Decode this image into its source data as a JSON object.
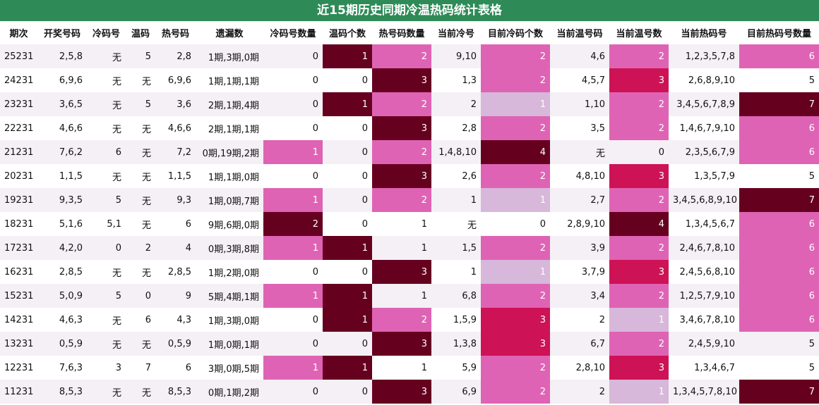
{
  "title": "近15期历史同期冷温热码统计表格",
  "headers": [
    "期次",
    "开奖号码",
    "冷码号",
    "温码",
    "热号码",
    "遗漏数",
    "冷码号数量",
    "温码个数",
    "热号码数量",
    "当前冷号",
    "目前冷码个数",
    "当前温号码",
    "当前温号数",
    "当前热码号",
    "目前热码号数量"
  ],
  "colors": {
    "title_bg": "#2e8b57",
    "row_odd": "#f4f0f5",
    "row_even": "#ffffff",
    "light_lavender": "#d7b7da",
    "pink": "#df63b4",
    "magenta": "#cd1255",
    "maroon": "#65001f"
  },
  "chart_data": {
    "type": "table",
    "title": "近15期历史同期冷温热码统计表格",
    "columns": [
      "期次",
      "开奖号码",
      "冷码号",
      "温码",
      "热号码",
      "遗漏数",
      "冷码号数量",
      "温码个数",
      "热号码数量",
      "当前冷号",
      "目前冷码个数",
      "当前温号码",
      "当前温号数",
      "当前热码号",
      "目前热码号数量"
    ],
    "heat_columns": [
      6,
      7,
      8,
      10,
      12,
      14
    ],
    "rows": [
      [
        "25231",
        "2,5,8",
        "无",
        "5",
        "2,8",
        "1期,3期,0期",
        "0",
        "1",
        "2",
        "9,10",
        "2",
        "4,6",
        "2",
        "1,2,3,5,7,8",
        "6"
      ],
      [
        "24231",
        "6,9,6",
        "无",
        "无",
        "6,9,6",
        "1期,1期,1期",
        "0",
        "0",
        "3",
        "1,3",
        "2",
        "4,5,7",
        "3",
        "2,6,8,9,10",
        "5"
      ],
      [
        "23231",
        "3,6,5",
        "无",
        "5",
        "3,6",
        "2期,1期,4期",
        "0",
        "1",
        "2",
        "2",
        "1",
        "1,10",
        "2",
        "3,4,5,6,7,8,9",
        "7"
      ],
      [
        "22231",
        "4,6,6",
        "无",
        "无",
        "4,6,6",
        "2期,1期,1期",
        "0",
        "0",
        "3",
        "2,8",
        "2",
        "3,5",
        "2",
        "1,4,6,7,9,10",
        "6"
      ],
      [
        "21231",
        "7,6,2",
        "6",
        "无",
        "7,2",
        "0期,19期,2期",
        "1",
        "0",
        "2",
        "1,4,8,10",
        "4",
        "无",
        "0",
        "2,3,5,6,7,9",
        "6"
      ],
      [
        "20231",
        "1,1,5",
        "无",
        "无",
        "1,1,5",
        "1期,1期,0期",
        "0",
        "0",
        "3",
        "2,6",
        "2",
        "4,8,10",
        "3",
        "1,3,5,7,9",
        "5"
      ],
      [
        "19231",
        "9,3,5",
        "5",
        "无",
        "9,3",
        "1期,0期,7期",
        "1",
        "0",
        "2",
        "1",
        "1",
        "2,7",
        "2",
        "3,4,5,6,8,9,10",
        "7"
      ],
      [
        "18231",
        "5,1,6",
        "5,1",
        "无",
        "6",
        "9期,6期,0期",
        "2",
        "0",
        "1",
        "无",
        "0",
        "2,8,9,10",
        "4",
        "1,3,4,5,6,7",
        "6"
      ],
      [
        "17231",
        "4,2,0",
        "0",
        "2",
        "4",
        "0期,3期,8期",
        "1",
        "1",
        "1",
        "1,5",
        "2",
        "3,9",
        "2",
        "2,4,6,7,8,10",
        "6"
      ],
      [
        "16231",
        "2,8,5",
        "无",
        "无",
        "2,8,5",
        "1期,2期,0期",
        "0",
        "0",
        "3",
        "1",
        "1",
        "3,7,9",
        "3",
        "2,4,5,6,8,10",
        "6"
      ],
      [
        "15231",
        "5,0,9",
        "5",
        "0",
        "9",
        "5期,4期,1期",
        "1",
        "1",
        "1",
        "6,8",
        "2",
        "3,4",
        "2",
        "1,2,5,7,9,10",
        "6"
      ],
      [
        "14231",
        "4,6,3",
        "无",
        "6",
        "4,3",
        "1期,3期,0期",
        "0",
        "1",
        "2",
        "1,5,9",
        "3",
        "2",
        "1",
        "3,4,6,7,8,10",
        "6"
      ],
      [
        "13231",
        "0,5,9",
        "无",
        "无",
        "0,5,9",
        "1期,0期,1期",
        "0",
        "0",
        "3",
        "1,3,8",
        "3",
        "6,7",
        "2",
        "2,4,5,9,10",
        "5"
      ],
      [
        "12231",
        "7,6,3",
        "3",
        "7",
        "6",
        "3期,0期,5期",
        "1",
        "1",
        "1",
        "5,9",
        "2",
        "2,8,10",
        "3",
        "1,3,4,6,7",
        "5"
      ],
      [
        "11231",
        "8,5,3",
        "无",
        "无",
        "8,5,3",
        "0期,1期,2期",
        "0",
        "0",
        "3",
        "6,9",
        "2",
        "2",
        "1",
        "1,3,4,5,7,8,10",
        "7"
      ]
    ]
  }
}
